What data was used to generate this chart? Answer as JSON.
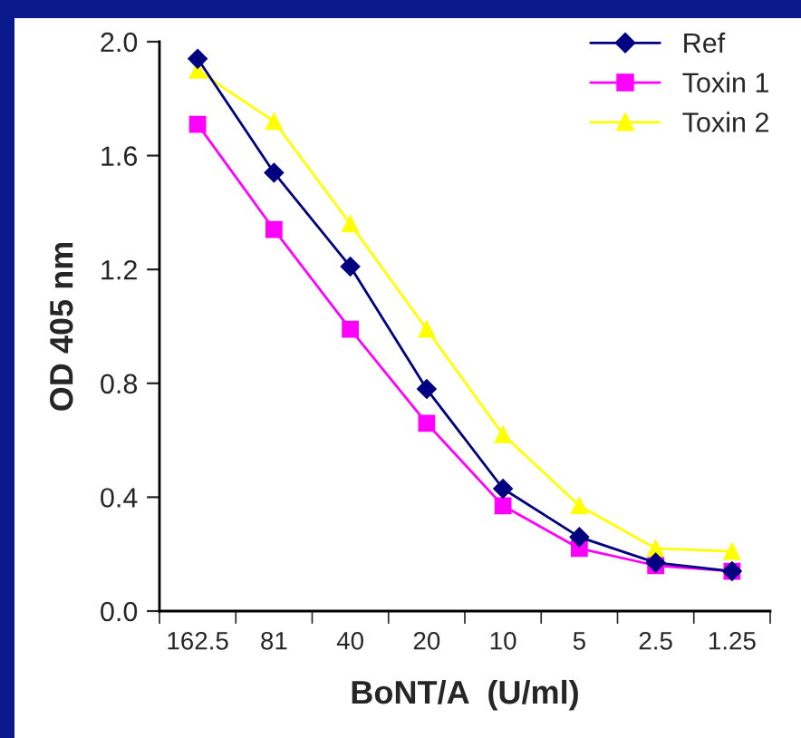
{
  "chart_data": {
    "type": "line",
    "xlabel": "BoNT/A  (U/ml)",
    "ylabel": "OD 405 nm",
    "categories": [
      "162.5",
      "81",
      "40",
      "20",
      "10",
      "5",
      "2.5",
      "1.25"
    ],
    "series": [
      {
        "name": "Ref",
        "color": "#000080",
        "marker": "diamond",
        "values": [
          1.94,
          1.54,
          1.21,
          0.78,
          0.43,
          0.26,
          0.17,
          0.14
        ]
      },
      {
        "name": "Toxin 1",
        "color": "#ff00ff",
        "marker": "square",
        "values": [
          1.71,
          1.34,
          0.99,
          0.66,
          0.37,
          0.22,
          0.16,
          0.14
        ]
      },
      {
        "name": "Toxin 2",
        "color": "#ffff00",
        "marker": "triangle",
        "values": [
          1.9,
          1.72,
          1.36,
          0.99,
          0.62,
          0.37,
          0.22,
          0.21
        ]
      }
    ],
    "ylim": [
      0,
      2.0
    ],
    "yticks": [
      {
        "value": 0,
        "label": "0.0"
      },
      {
        "value": 0.4,
        "label": "0.4"
      },
      {
        "value": 0.8,
        "label": "0.8"
      },
      {
        "value": 1.2,
        "label": "1.2"
      },
      {
        "value": 1.6,
        "label": "1.6"
      },
      {
        "value": 2.0,
        "label": "2.0"
      }
    ],
    "grid": false,
    "legend": "top right",
    "line_style": "solid"
  }
}
